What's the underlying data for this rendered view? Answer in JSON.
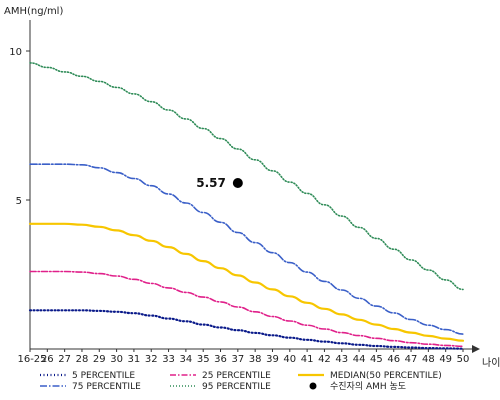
{
  "chart_data": {
    "type": "line",
    "ylabel": "AMH(ng/ml)",
    "xlabel": "나이",
    "ylim": [
      0,
      11
    ],
    "yticks": [
      {
        "value": 5,
        "label": "5"
      },
      {
        "value": 10,
        "label": "10"
      }
    ],
    "categories": [
      "16-25",
      "26",
      "27",
      "28",
      "29",
      "30",
      "31",
      "32",
      "33",
      "34",
      "35",
      "36",
      "37",
      "38",
      "39",
      "40",
      "41",
      "42",
      "43",
      "44",
      "45",
      "46",
      "47",
      "48",
      "49",
      "50"
    ],
    "grid": false,
    "legend_position": "bottom",
    "series": [
      {
        "name": "5 PERCENTILE",
        "color": "#0a1a8a",
        "dash": "1,2.5",
        "width": 2.2,
        "values": [
          1.3,
          1.3,
          1.3,
          1.3,
          1.28,
          1.25,
          1.2,
          1.12,
          1.02,
          0.93,
          0.82,
          0.72,
          0.63,
          0.54,
          0.46,
          0.38,
          0.31,
          0.25,
          0.19,
          0.14,
          0.1,
          0.07,
          0.05,
          0.03,
          0.02,
          0.01
        ]
      },
      {
        "name": "25 PERCENTILE",
        "color": "#e0208a",
        "dash": "6,2,1.5,2",
        "width": 1.6,
        "values": [
          2.6,
          2.6,
          2.6,
          2.58,
          2.53,
          2.45,
          2.34,
          2.2,
          2.05,
          1.9,
          1.74,
          1.58,
          1.41,
          1.25,
          1.09,
          0.94,
          0.8,
          0.67,
          0.55,
          0.45,
          0.36,
          0.28,
          0.21,
          0.16,
          0.12,
          0.09
        ]
      },
      {
        "name": "MEDIAN(50 PERCENTILE)",
        "color": "#f7c600",
        "dash": "",
        "width": 2.2,
        "values": [
          4.2,
          4.2,
          4.2,
          4.17,
          4.1,
          3.98,
          3.82,
          3.63,
          3.42,
          3.19,
          2.95,
          2.71,
          2.47,
          2.23,
          2.0,
          1.77,
          1.55,
          1.35,
          1.16,
          0.98,
          0.82,
          0.67,
          0.55,
          0.44,
          0.35,
          0.28
        ]
      },
      {
        "name": "75 PERCENTILE",
        "color": "#3a5fc8",
        "dash": "7,2,1.5,2",
        "width": 1.6,
        "values": [
          6.2,
          6.2,
          6.2,
          6.18,
          6.08,
          5.92,
          5.72,
          5.48,
          5.2,
          4.9,
          4.58,
          4.25,
          3.91,
          3.57,
          3.23,
          2.9,
          2.58,
          2.27,
          1.98,
          1.7,
          1.44,
          1.21,
          0.99,
          0.8,
          0.65,
          0.5
        ]
      },
      {
        "name": "95 PERCENTILE",
        "color": "#2e8b57",
        "dash": "1,2",
        "width": 1.6,
        "values": [
          9.6,
          9.45,
          9.3,
          9.15,
          8.98,
          8.78,
          8.56,
          8.3,
          8.02,
          7.72,
          7.4,
          7.06,
          6.71,
          6.35,
          5.98,
          5.6,
          5.22,
          4.84,
          4.46,
          4.08,
          3.71,
          3.35,
          2.99,
          2.65,
          2.32,
          2.0
        ]
      }
    ],
    "highlight_point": {
      "name": "수진자의 AMH 농도",
      "x": "37",
      "y": 5.57,
      "label": "5.57",
      "color": "#000000"
    }
  }
}
